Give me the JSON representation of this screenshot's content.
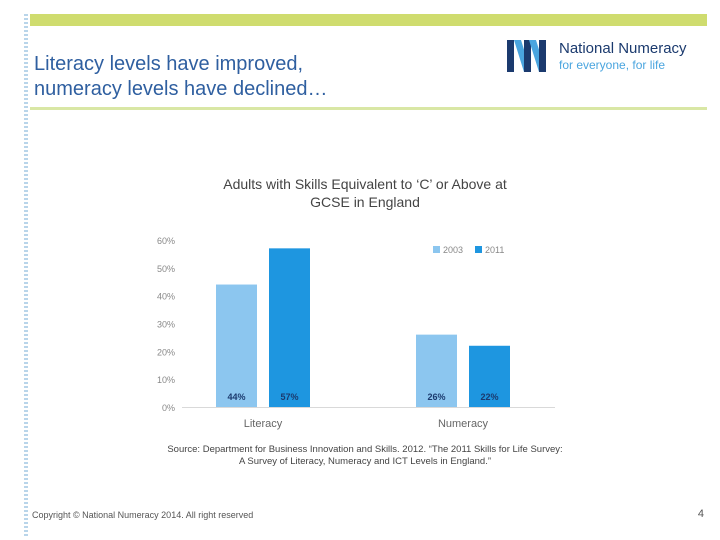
{
  "slide": {
    "title_line1": "Literacy levels have improved,",
    "title_line2": "numeracy levels have declined…",
    "copyright": "Copyright © National Numeracy 2014. All right reserved",
    "page_number": "4",
    "source_line1": "Source: Department for Business Innovation and Skills. 2012. “The 2011 Skills for Life Survey:",
    "source_line2": "A Survey of Literacy, Numeracy and ICT Levels in England.”",
    "colors": {
      "accent_bar": "#cfdc6e",
      "title": "#2f5fa0",
      "series_2003": "#8cc6ef",
      "series_2011": "#1e96e0"
    }
  },
  "logo": {
    "name": "National Numeracy",
    "tagline": "for everyone, for life",
    "icon": "nn-monogram-icon"
  },
  "chart_data": {
    "type": "bar",
    "title_line1": "Adults with Skills Equivalent to ‘C’ or Above at",
    "title_line2": "GCSE in England",
    "categories": [
      "Literacy",
      "Numeracy"
    ],
    "series": [
      {
        "name": "2003",
        "values": [
          44,
          26
        ],
        "labels": [
          "44%",
          "26%"
        ]
      },
      {
        "name": "2011",
        "values": [
          57,
          22
        ],
        "labels": [
          "57%",
          "22%"
        ]
      }
    ],
    "ylim": [
      0,
      60
    ],
    "yticks": [
      0,
      10,
      20,
      30,
      40,
      50,
      60
    ],
    "ytick_labels": [
      "0%",
      "10%",
      "20%",
      "30%",
      "40%",
      "50%",
      "60%"
    ],
    "legend": "top-right",
    "grid": false
  }
}
